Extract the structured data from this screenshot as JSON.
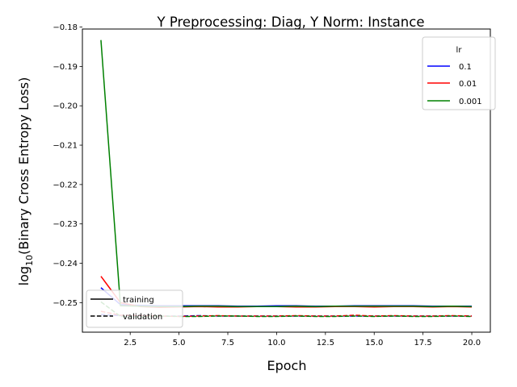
{
  "chart_data": {
    "type": "line",
    "title": "Y Preprocessing: Diag, Y Norm: Instance",
    "xlabel": "Epoch",
    "ylabel_main": "log",
    "ylabel_sub": "10",
    "ylabel_rest": "(Binary Cross Entropy Loss)",
    "xlim": [
      0.05,
      20.95
    ],
    "ylim": [
      -0.2575,
      -0.1805
    ],
    "xticks": [
      2.5,
      5.0,
      7.5,
      10.0,
      12.5,
      15.0,
      17.5,
      20.0
    ],
    "xtick_labels": [
      "2.5",
      "5.0",
      "7.5",
      "10.0",
      "12.5",
      "15.0",
      "17.5",
      "20.0"
    ],
    "yticks": [
      -0.25,
      -0.24,
      -0.23,
      -0.22,
      -0.21,
      -0.2,
      -0.19,
      -0.18
    ],
    "ytick_labels": [
      "−0.25",
      "−0.24",
      "−0.23",
      "−0.22",
      "−0.21",
      "−0.20",
      "−0.19",
      "−0.18"
    ],
    "grid": false,
    "lr_legend": {
      "title": "lr",
      "placement": "top-right",
      "entries": [
        {
          "label": "0.1",
          "color": "#0000ff"
        },
        {
          "label": "0.01",
          "color": "#ff0000"
        },
        {
          "label": "0.001",
          "color": "#008000"
        }
      ]
    },
    "style_legend": {
      "placement": "bottom-left",
      "entries": [
        {
          "label": "training",
          "style": "solid"
        },
        {
          "label": "validation",
          "style": "dashed"
        }
      ]
    },
    "x": [
      1,
      2,
      3,
      4,
      5,
      6,
      7,
      8,
      9,
      10,
      11,
      12,
      13,
      14,
      15,
      16,
      17,
      18,
      19,
      20
    ],
    "series": [
      {
        "lr": "0.1",
        "split": "training",
        "color": "#0000ff",
        "style": "solid",
        "values": [
          -0.2462,
          -0.2505,
          -0.2507,
          -0.2508,
          -0.2508,
          -0.2508,
          -0.2508,
          -0.2509,
          -0.2509,
          -0.2508,
          -0.2508,
          -0.2509,
          -0.2509,
          -0.2508,
          -0.2508,
          -0.2508,
          -0.2508,
          -0.2509,
          -0.2509,
          -0.2509
        ]
      },
      {
        "lr": "0.1",
        "split": "validation",
        "color": "#0000ff",
        "style": "dashed",
        "values": [
          -0.253,
          -0.2533,
          -0.2534,
          -0.2534,
          -0.2534,
          -0.2533,
          -0.2534,
          -0.2534,
          -0.2534,
          -0.2534,
          -0.2534,
          -0.2534,
          -0.2534,
          -0.2534,
          -0.2534,
          -0.2534,
          -0.2534,
          -0.2534,
          -0.2534,
          -0.2534
        ]
      },
      {
        "lr": "0.01",
        "split": "training",
        "color": "#ff0000",
        "style": "solid",
        "values": [
          -0.2433,
          -0.25,
          -0.251,
          -0.2512,
          -0.2511,
          -0.251,
          -0.2511,
          -0.2511,
          -0.251,
          -0.251,
          -0.2511,
          -0.2511,
          -0.251,
          -0.251,
          -0.2511,
          -0.251,
          -0.251,
          -0.2511,
          -0.251,
          -0.2511
        ]
      },
      {
        "lr": "0.01",
        "split": "validation",
        "color": "#ff0000",
        "style": "dashed",
        "values": [
          -0.2522,
          -0.2532,
          -0.2533,
          -0.2534,
          -0.2535,
          -0.2534,
          -0.2533,
          -0.2534,
          -0.2534,
          -0.2534,
          -0.2533,
          -0.2534,
          -0.2534,
          -0.2532,
          -0.2534,
          -0.2533,
          -0.2534,
          -0.2534,
          -0.2533,
          -0.2534
        ]
      },
      {
        "lr": "0.001",
        "split": "training",
        "color": "#008000",
        "style": "solid",
        "values": [
          -0.1833,
          -0.2508,
          -0.2509,
          -0.251,
          -0.251,
          -0.2509,
          -0.2509,
          -0.251,
          -0.251,
          -0.251,
          -0.2509,
          -0.251,
          -0.2509,
          -0.2509,
          -0.2509,
          -0.2509,
          -0.2509,
          -0.251,
          -0.2509,
          -0.251
        ]
      },
      {
        "lr": "0.001",
        "split": "validation",
        "color": "#008000",
        "style": "dashed",
        "values": [
          -0.2498,
          -0.2535,
          -0.2536,
          -0.2534,
          -0.2535,
          -0.2535,
          -0.2534,
          -0.2534,
          -0.2535,
          -0.2535,
          -0.2534,
          -0.2535,
          -0.2535,
          -0.2534,
          -0.2535,
          -0.2534,
          -0.2535,
          -0.2535,
          -0.2534,
          -0.2535
        ]
      }
    ]
  }
}
